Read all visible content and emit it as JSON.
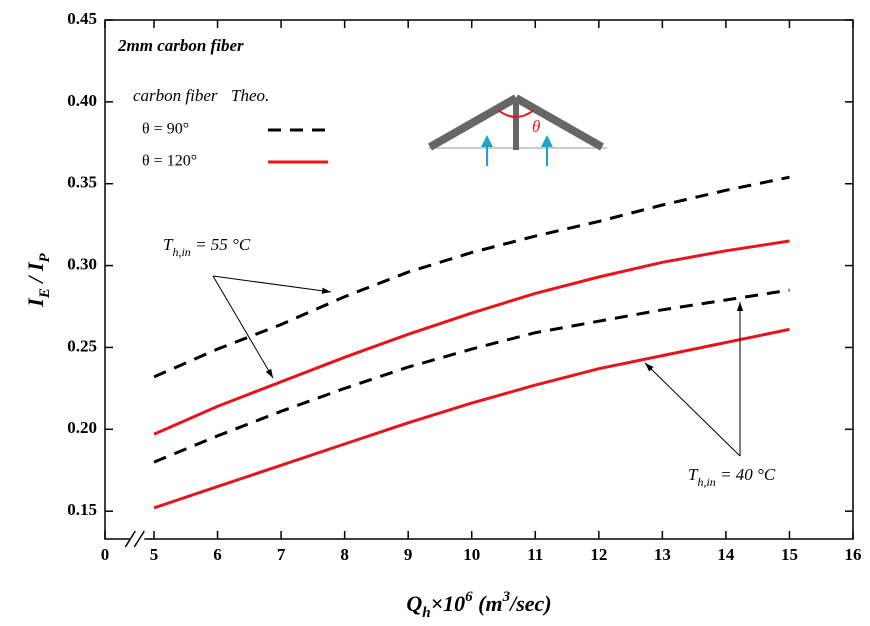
{
  "chart_data": {
    "type": "line",
    "title": "2mm carbon fiber",
    "legend_headers": [
      "carbon fiber",
      "Theo."
    ],
    "x_label": [
      "Q",
      "h",
      "×10",
      "6",
      " (m",
      "3",
      "/sec)"
    ],
    "y_label": [
      "I",
      "E",
      " / I",
      "P"
    ],
    "inset_label": "θ",
    "x": [
      5,
      6,
      7,
      8,
      9,
      10,
      11,
      12,
      13,
      14,
      15
    ],
    "xlim": [
      0,
      16
    ],
    "xbreak": [
      0,
      5
    ],
    "xticks": [
      0,
      5,
      6,
      7,
      8,
      9,
      10,
      11,
      12,
      13,
      14,
      15,
      16
    ],
    "ylim": [
      0.133,
      0.45
    ],
    "yticks": [
      {
        "value": 0.15,
        "label": "0.15"
      },
      {
        "value": 0.2,
        "label": "0.20"
      },
      {
        "value": 0.25,
        "label": "0.25"
      },
      {
        "value": 0.3,
        "label": "0.30"
      },
      {
        "value": 0.35,
        "label": "0.35"
      },
      {
        "value": 0.4,
        "label": "0.40"
      },
      {
        "value": 0.45,
        "label": "0.45"
      }
    ],
    "series": [
      {
        "name": "θ = 90°",
        "color": "#000000",
        "dashed": true,
        "curves": [
          [
            0.232,
            0.249,
            0.264,
            0.281,
            0.296,
            0.308,
            0.318,
            0.327,
            0.337,
            0.346,
            0.354
          ],
          [
            0.18,
            0.196,
            0.211,
            0.225,
            0.238,
            0.249,
            0.259,
            0.266,
            0.273,
            0.279,
            0.285
          ]
        ]
      },
      {
        "name": "θ = 120°",
        "color": "#e8141b",
        "dashed": false,
        "curves": [
          [
            0.197,
            0.214,
            0.229,
            0.244,
            0.258,
            0.271,
            0.283,
            0.293,
            0.302,
            0.309,
            0.315
          ],
          [
            0.152,
            0.165,
            0.178,
            0.191,
            0.204,
            0.216,
            0.227,
            0.237,
            0.245,
            0.253,
            0.261
          ]
        ]
      }
    ],
    "annotations": [
      {
        "symbol": "T",
        "subscript": "h,in",
        "text": " = 55 °C"
      },
      {
        "symbol": "T",
        "subscript": "h,in",
        "text": " = 40 °C"
      }
    ]
  }
}
